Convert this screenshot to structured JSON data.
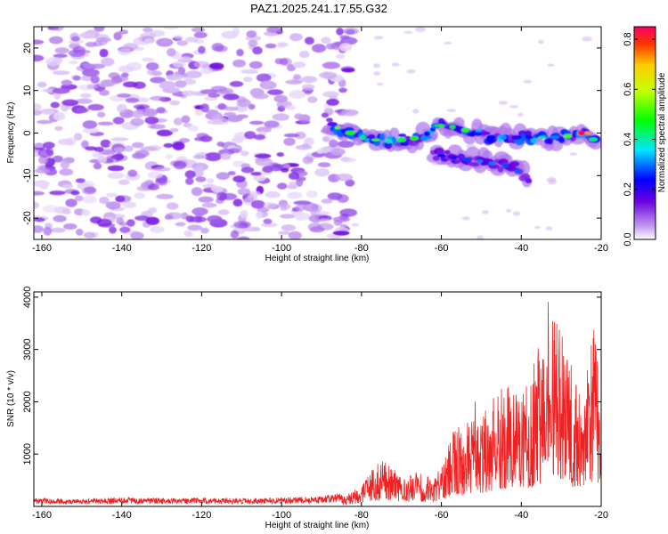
{
  "title": "PAZ1.2025.241.17.55.G32",
  "chart_data": [
    {
      "type": "heatmap",
      "title": "PAZ1.2025.241.17.55.G32",
      "xlabel": "Height of straight line (km)",
      "ylabel": "Frequency (Hz)",
      "xlim": [
        -162,
        -20
      ],
      "ylim": [
        -25,
        25
      ],
      "xticks": [
        -160,
        -140,
        -120,
        -100,
        -80,
        -60,
        -40,
        -20
      ],
      "yticks": [
        -20,
        -10,
        0,
        10,
        20
      ],
      "colorbar": {
        "label": "Normalized spectral amplitude",
        "range": [
          0.0,
          0.85
        ],
        "ticks": [
          0.0,
          0.2,
          0.4,
          0.6,
          0.8
        ]
      },
      "features": [
        {
          "region": "noise",
          "x_range": [
            -162,
            -82
          ],
          "freq_range": [
            -25,
            25
          ],
          "amplitude": [
            0.02,
            0.15
          ]
        },
        {
          "region": "main-track",
          "points": [
            [
              -88,
              2
            ],
            [
              -80,
              -1
            ],
            [
              -74,
              -2
            ],
            [
              -65,
              -1
            ],
            [
              -60,
              2
            ],
            [
              -55,
              1
            ],
            [
              -48,
              -1
            ],
            [
              -40,
              -1
            ],
            [
              -30,
              -1
            ],
            [
              -25,
              0
            ],
            [
              -21,
              -2
            ]
          ],
          "amplitude": [
            0.2,
            0.85
          ]
        },
        {
          "region": "lower-track",
          "points": [
            [
              -62,
              -5
            ],
            [
              -55,
              -6
            ],
            [
              -48,
              -7
            ],
            [
              -42,
              -8
            ],
            [
              -38,
              -11
            ]
          ],
          "amplitude": [
            0.2,
            0.4
          ]
        }
      ]
    },
    {
      "type": "line",
      "xlabel": "Height of straight line (km)",
      "ylabel": "SNR (10 * v/v)",
      "xlim": [
        -162,
        -20
      ],
      "ylim": [
        0,
        4100
      ],
      "xticks": [
        -160,
        -140,
        -120,
        -100,
        -80,
        -60,
        -40,
        -20
      ],
      "yticks": [
        1000,
        2000,
        3000,
        4000
      ],
      "color": "#ee2222",
      "series": [
        {
          "name": "SNR",
          "x": [
            -162,
            -150,
            -140,
            -130,
            -120,
            -110,
            -100,
            -90,
            -85,
            -80,
            -78,
            -75,
            -72,
            -70,
            -66,
            -62,
            -60,
            -58,
            -56,
            -54,
            -52,
            -50,
            -48,
            -46,
            -44,
            -42,
            -40,
            -38,
            -36,
            -34,
            -33,
            -32,
            -30,
            -28,
            -26,
            -24,
            -22,
            -21,
            -20.5,
            -20
          ],
          "values": [
            120,
            110,
            130,
            120,
            130,
            120,
            130,
            150,
            200,
            350,
            600,
            800,
            700,
            500,
            600,
            500,
            700,
            1200,
            1500,
            1300,
            1900,
            1600,
            1800,
            2000,
            2200,
            2000,
            2500,
            2200,
            2700,
            3200,
            3800,
            3600,
            3000,
            2600,
            2200,
            2300,
            3100,
            3300,
            2000,
            1000
          ]
        }
      ]
    }
  ]
}
